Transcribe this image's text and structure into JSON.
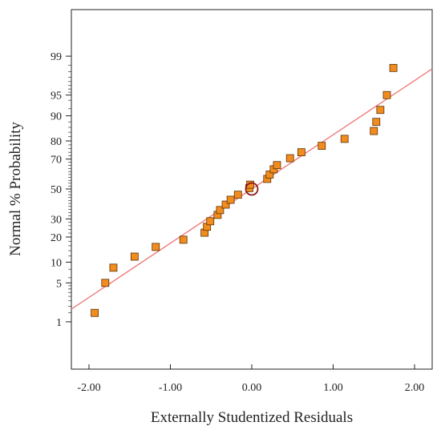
{
  "chart_data": {
    "type": "scatter",
    "title": "",
    "xlabel": "Externally Studentized Residuals",
    "ylabel": "Normal % Probability",
    "xlim": [
      -2.25,
      2.25
    ],
    "ylim_percent": [
      0.1,
      99.9
    ],
    "y_scale": "normal-probability",
    "grid": false,
    "x_ticks": [
      -2.0,
      -1.0,
      0.0,
      1.0,
      2.0
    ],
    "x_tick_labels": [
      "-2.00",
      "-1.00",
      "0.00",
      "1.00",
      "2.00"
    ],
    "y_ticks": [
      1,
      5,
      10,
      20,
      30,
      50,
      70,
      80,
      90,
      95,
      99
    ],
    "y_tick_labels": [
      "1",
      "5",
      "10",
      "20",
      "30",
      "50",
      "70",
      "80",
      "90",
      "95",
      "99"
    ],
    "reference_line": {
      "x_at_1_percent": -2.45,
      "x_at_99_percent": 2.45
    },
    "highlighted_point": {
      "x": 0.0,
      "y": 50
    },
    "points": [
      {
        "x": -1.93,
        "y": 1.5
      },
      {
        "x": -1.8,
        "y": 5.0
      },
      {
        "x": -1.7,
        "y": 8.4
      },
      {
        "x": -1.44,
        "y": 11.8
      },
      {
        "x": -1.18,
        "y": 15.5
      },
      {
        "x": -0.84,
        "y": 18.7
      },
      {
        "x": -0.58,
        "y": 22.2
      },
      {
        "x": -0.55,
        "y": 25.4
      },
      {
        "x": -0.51,
        "y": 28.6
      },
      {
        "x": -0.42,
        "y": 32.5
      },
      {
        "x": -0.39,
        "y": 35.6
      },
      {
        "x": -0.32,
        "y": 39.2
      },
      {
        "x": -0.26,
        "y": 42.5
      },
      {
        "x": -0.17,
        "y": 46.0
      },
      {
        "x": -0.03,
        "y": 50.6
      },
      {
        "x": -0.02,
        "y": 53.0
      },
      {
        "x": 0.19,
        "y": 57.0
      },
      {
        "x": 0.22,
        "y": 60.0
      },
      {
        "x": 0.27,
        "y": 63.5
      },
      {
        "x": 0.31,
        "y": 66.2
      },
      {
        "x": 0.47,
        "y": 70.5
      },
      {
        "x": 0.61,
        "y": 74.0
      },
      {
        "x": 0.86,
        "y": 77.5
      },
      {
        "x": 1.14,
        "y": 81.0
      },
      {
        "x": 1.5,
        "y": 84.5
      },
      {
        "x": 1.53,
        "y": 88.0
      },
      {
        "x": 1.58,
        "y": 91.7
      },
      {
        "x": 1.66,
        "y": 95.0
      },
      {
        "x": 1.74,
        "y": 98.3
      }
    ],
    "colors": {
      "marker_fill": "#F28C1E",
      "marker_stroke": "#5A3206",
      "line": "#F07C7C",
      "highlight": "#8B1A1A",
      "axis": "#222222"
    }
  }
}
